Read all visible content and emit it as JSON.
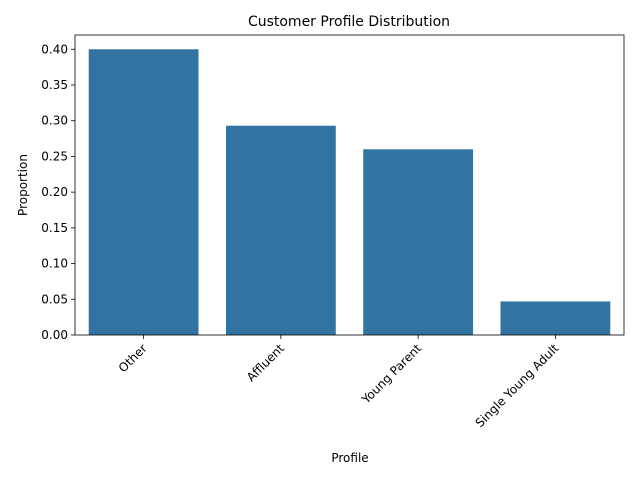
{
  "chart_data": {
    "type": "bar",
    "title": "Customer Profile Distribution",
    "xlabel": "Profile",
    "ylabel": "Proportion",
    "categories": [
      "Other",
      "Affluent",
      "Young Parent",
      "Single Young Adult"
    ],
    "values": [
      0.4,
      0.293,
      0.26,
      0.047
    ],
    "ylim": [
      0,
      0.42
    ],
    "yticks": [
      0.0,
      0.05,
      0.1,
      0.15,
      0.2,
      0.25,
      0.3,
      0.35,
      0.4
    ],
    "ytick_labels": [
      "0.00",
      "0.05",
      "0.10",
      "0.15",
      "0.20",
      "0.25",
      "0.30",
      "0.35",
      "0.40"
    ],
    "bar_color": "#3274a1",
    "grid": false
  }
}
